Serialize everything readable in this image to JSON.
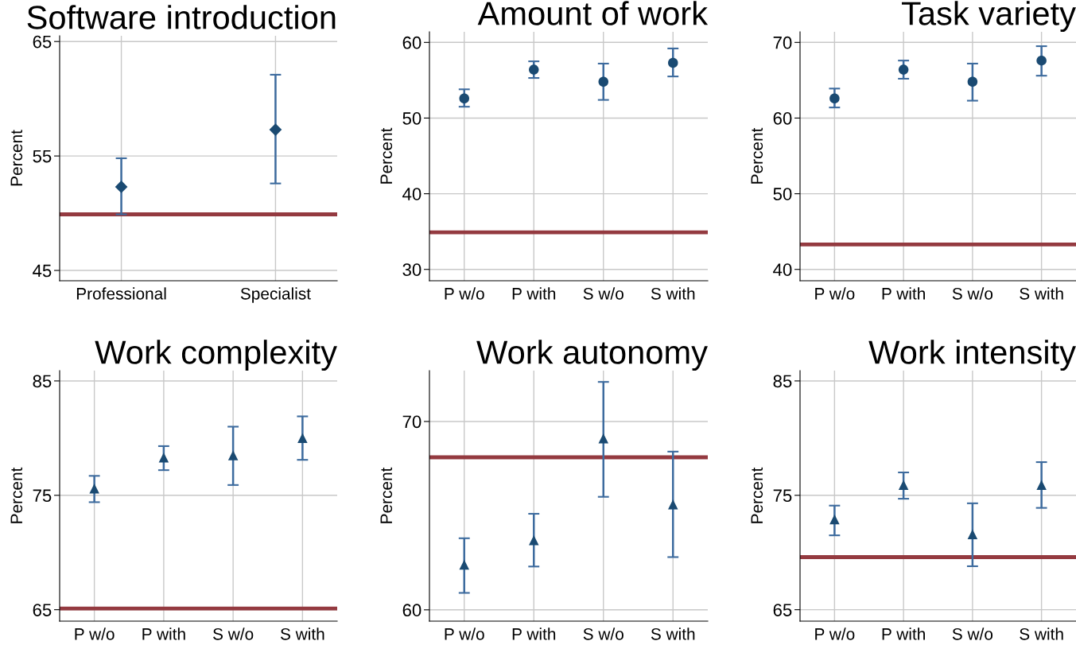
{
  "chart_data": [
    {
      "type": "scatter",
      "title": "Software introduction",
      "ylabel": "Percent",
      "categories": [
        "Professional",
        "Specialist"
      ],
      "marker": "diamond",
      "grid": true,
      "series": [
        {
          "color": "#1a4a72",
          "values": [
            52.3,
            57.3
          ],
          "errors": [
            [
              49.9,
              54.8
            ],
            [
              52.6,
              62.1
            ]
          ]
        }
      ],
      "ylim": [
        44.1,
        65.5
      ],
      "yticks": [
        45,
        55,
        65
      ],
      "ref_lines": [
        {
          "axis": "y",
          "value": 49.9,
          "color": "#943a40"
        }
      ]
    },
    {
      "type": "scatter",
      "title": "Amount of work",
      "ylabel": "Percent",
      "categories": [
        "P w/o",
        "P with",
        "S w/o",
        "S with"
      ],
      "marker": "circle",
      "grid": true,
      "series": [
        {
          "color": "#1a4a72",
          "values": [
            52.6,
            56.4,
            54.8,
            57.3
          ],
          "errors": [
            [
              51.5,
              53.8
            ],
            [
              55.3,
              57.5
            ],
            [
              52.4,
              57.2
            ],
            [
              55.5,
              59.2
            ]
          ]
        }
      ],
      "ylim": [
        28.5,
        61.4
      ],
      "yticks": [
        30,
        40,
        50,
        60
      ],
      "ref_lines": [
        {
          "axis": "y",
          "value": 34.9,
          "color": "#943a40"
        }
      ]
    },
    {
      "type": "scatter",
      "title": "Task variety",
      "ylabel": "Percent",
      "categories": [
        "P w/o",
        "P with",
        "S w/o",
        "S with"
      ],
      "marker": "circle",
      "grid": true,
      "series": [
        {
          "color": "#1a4a72",
          "values": [
            62.6,
            66.4,
            64.8,
            67.6
          ],
          "errors": [
            [
              61.4,
              63.9
            ],
            [
              65.2,
              67.6
            ],
            [
              62.3,
              67.2
            ],
            [
              65.6,
              69.5
            ]
          ]
        }
      ],
      "ylim": [
        38.5,
        71.4
      ],
      "yticks": [
        40,
        50,
        60,
        70
      ],
      "ref_lines": [
        {
          "axis": "y",
          "value": 43.3,
          "color": "#943a40"
        }
      ]
    },
    {
      "type": "scatter",
      "title": "Work complexity",
      "ylabel": "Percent",
      "categories": [
        "P w/o",
        "P with",
        "S w/o",
        "S with"
      ],
      "marker": "triangle",
      "grid": true,
      "series": [
        {
          "color": "#1a4a72",
          "values": [
            75.6,
            78.3,
            78.5,
            80.0
          ],
          "errors": [
            [
              74.4,
              76.7
            ],
            [
              77.2,
              79.3
            ],
            [
              75.9,
              81.0
            ],
            [
              78.1,
              81.9
            ]
          ]
        }
      ],
      "ylim": [
        64.0,
        85.9
      ],
      "yticks": [
        65,
        75,
        85
      ],
      "ref_lines": [
        {
          "axis": "y",
          "value": 65.1,
          "color": "#943a40"
        }
      ]
    },
    {
      "type": "scatter",
      "title": "Work autonomy",
      "ylabel": "Percent",
      "categories": [
        "P w/o",
        "P with",
        "S w/o",
        "S with"
      ],
      "marker": "triangle",
      "grid": true,
      "series": [
        {
          "color": "#1a4a72",
          "values": [
            62.4,
            63.7,
            69.1,
            65.6
          ],
          "errors": [
            [
              60.9,
              63.8
            ],
            [
              62.3,
              65.1
            ],
            [
              66.0,
              72.1
            ],
            [
              62.8,
              68.4
            ]
          ]
        }
      ],
      "ylim": [
        59.4,
        72.7
      ],
      "yticks": [
        60,
        70
      ],
      "ref_lines": [
        {
          "axis": "y",
          "value": 68.1,
          "color": "#943a40"
        }
      ]
    },
    {
      "type": "scatter",
      "title": "Work intensity",
      "ylabel": "Percent",
      "categories": [
        "P w/o",
        "P with",
        "S w/o",
        "S with"
      ],
      "marker": "triangle",
      "grid": true,
      "series": [
        {
          "color": "#1a4a72",
          "values": [
            72.9,
            75.9,
            71.6,
            75.9
          ],
          "errors": [
            [
              71.5,
              74.1
            ],
            [
              74.7,
              77.0
            ],
            [
              68.8,
              74.3
            ],
            [
              73.9,
              77.9
            ]
          ]
        }
      ],
      "ylim": [
        64.0,
        85.9
      ],
      "yticks": [
        65,
        75,
        85
      ],
      "ref_lines": [
        {
          "axis": "y",
          "value": 69.6,
          "color": "#943a40"
        }
      ]
    }
  ]
}
